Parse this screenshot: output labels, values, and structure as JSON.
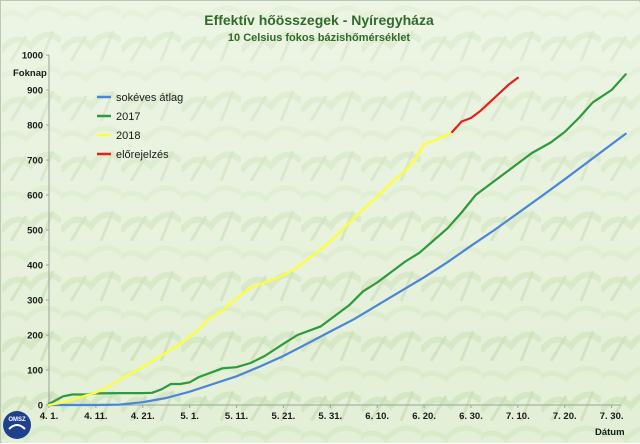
{
  "chart_data": {
    "type": "line",
    "title": "Effektív hőösszegek - Nyíregyháza",
    "subtitle": "10 Celsius fokos bázishőmérséklet",
    "ylabel": "Foknap",
    "xlabel": "Dátum",
    "ylim": [
      0,
      1000
    ],
    "yticks": [
      0,
      100,
      200,
      300,
      400,
      500,
      600,
      700,
      800,
      900,
      1000
    ],
    "xlim": [
      0,
      122
    ],
    "xticks": [
      {
        "day": 0,
        "label": "4. 1."
      },
      {
        "day": 10,
        "label": "4. 11."
      },
      {
        "day": 20,
        "label": "4. 21."
      },
      {
        "day": 30,
        "label": "5. 1."
      },
      {
        "day": 40,
        "label": "5. 11."
      },
      {
        "day": 50,
        "label": "5. 21."
      },
      {
        "day": 60,
        "label": "5. 31."
      },
      {
        "day": 70,
        "label": "6. 10."
      },
      {
        "day": 80,
        "label": "6. 20."
      },
      {
        "day": 90,
        "label": "6. 30."
      },
      {
        "day": 100,
        "label": "7. 10."
      },
      {
        "day": 110,
        "label": "7. 20."
      },
      {
        "day": 120,
        "label": "7. 30."
      }
    ],
    "grid": false,
    "legend_position": "top-left",
    "series": [
      {
        "name": "sokéves átlag",
        "color": "#4a86d8",
        "points": [
          [
            0,
            0
          ],
          [
            10,
            0
          ],
          [
            15,
            1
          ],
          [
            20,
            8
          ],
          [
            25,
            20
          ],
          [
            30,
            38
          ],
          [
            35,
            60
          ],
          [
            40,
            82
          ],
          [
            45,
            110
          ],
          [
            50,
            140
          ],
          [
            55,
            175
          ],
          [
            60,
            210
          ],
          [
            65,
            245
          ],
          [
            70,
            285
          ],
          [
            75,
            325
          ],
          [
            80,
            365
          ],
          [
            85,
            408
          ],
          [
            90,
            455
          ],
          [
            95,
            500
          ],
          [
            100,
            548
          ],
          [
            105,
            596
          ],
          [
            110,
            645
          ],
          [
            115,
            695
          ],
          [
            120,
            745
          ],
          [
            123,
            775
          ]
        ]
      },
      {
        "name": "2017",
        "color": "#2e9a3e",
        "points": [
          [
            0,
            3
          ],
          [
            3,
            25
          ],
          [
            5,
            30
          ],
          [
            8,
            30
          ],
          [
            10,
            33
          ],
          [
            15,
            34
          ],
          [
            20,
            34
          ],
          [
            22,
            35
          ],
          [
            24,
            45
          ],
          [
            26,
            60
          ],
          [
            28,
            60
          ],
          [
            30,
            65
          ],
          [
            32,
            80
          ],
          [
            35,
            95
          ],
          [
            37,
            105
          ],
          [
            40,
            108
          ],
          [
            43,
            120
          ],
          [
            46,
            140
          ],
          [
            50,
            175
          ],
          [
            53,
            200
          ],
          [
            56,
            215
          ],
          [
            58,
            225
          ],
          [
            61,
            255
          ],
          [
            64,
            285
          ],
          [
            67,
            325
          ],
          [
            70,
            350
          ],
          [
            73,
            380
          ],
          [
            76,
            410
          ],
          [
            79,
            435
          ],
          [
            82,
            470
          ],
          [
            85,
            505
          ],
          [
            88,
            550
          ],
          [
            91,
            600
          ],
          [
            95,
            640
          ],
          [
            99,
            680
          ],
          [
            103,
            720
          ],
          [
            107,
            750
          ],
          [
            110,
            780
          ],
          [
            113,
            820
          ],
          [
            116,
            865
          ],
          [
            120,
            900
          ],
          [
            123,
            945
          ]
        ]
      },
      {
        "name": "2018",
        "color": "#ffff33",
        "points": [
          [
            0,
            0
          ],
          [
            2,
            5
          ],
          [
            5,
            15
          ],
          [
            8,
            28
          ],
          [
            10,
            35
          ],
          [
            13,
            55
          ],
          [
            16,
            80
          ],
          [
            19,
            100
          ],
          [
            22,
            125
          ],
          [
            25,
            150
          ],
          [
            28,
            175
          ],
          [
            31,
            205
          ],
          [
            34,
            245
          ],
          [
            37,
            270
          ],
          [
            40,
            305
          ],
          [
            43,
            335
          ],
          [
            46,
            350
          ],
          [
            49,
            365
          ],
          [
            52,
            385
          ],
          [
            55,
            415
          ],
          [
            58,
            445
          ],
          [
            61,
            480
          ],
          [
            64,
            520
          ],
          [
            67,
            560
          ],
          [
            70,
            595
          ],
          [
            73,
            635
          ],
          [
            76,
            670
          ],
          [
            78,
            700
          ],
          [
            80,
            745
          ],
          [
            83,
            760
          ],
          [
            86,
            780
          ]
        ]
      },
      {
        "name": "előrejelzés",
        "color": "#e8201c",
        "points": [
          [
            86,
            780
          ],
          [
            88,
            810
          ],
          [
            90,
            820
          ],
          [
            92,
            840
          ],
          [
            94,
            865
          ],
          [
            96,
            890
          ],
          [
            98,
            915
          ],
          [
            100,
            935
          ]
        ]
      }
    ]
  },
  "logo_text": "OMSZ"
}
